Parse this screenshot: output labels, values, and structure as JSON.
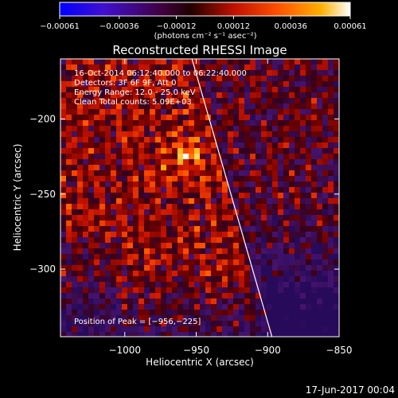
{
  "chart_data": {
    "type": "heatmap",
    "title": "Reconstructed RHESSI Image",
    "xlabel": "Heliocentric X (arcsec)",
    "ylabel": "Heliocentric Y (arcsec)",
    "xlim": [
      -1045,
      -850
    ],
    "ylim": [
      -345,
      -160
    ],
    "x_ticks": [
      {
        "value": -1000,
        "label": "−1000"
      },
      {
        "value": -950,
        "label": "−950"
      },
      {
        "value": -900,
        "label": "−900"
      },
      {
        "value": -850,
        "label": "−850"
      }
    ],
    "y_ticks": [
      {
        "value": -200,
        "label": "−200"
      },
      {
        "value": -250,
        "label": "−250"
      },
      {
        "value": -300,
        "label": "−300"
      }
    ],
    "colorbar": {
      "min": -0.00061,
      "max": 0.00061,
      "tick_values": [
        -0.00061,
        -0.00036,
        -0.00012,
        0.00012,
        0.00036,
        0.00061
      ],
      "tick_labels": [
        "−0.00061",
        "−0.00036",
        "−0.00012",
        "0.00012",
        "0.00036",
        "0.00061"
      ],
      "units_text": "(photons cm⁻² s⁻¹ asec⁻²)",
      "colors": [
        "#0000ff",
        "#6020a0",
        "#300010",
        "#a01000",
        "#ff3000",
        "#ff9000",
        "#ffffff"
      ]
    },
    "annotations": [
      "16-Oct-2014 06:12:40.000 to 06:22:40.000",
      "Detectors: 3F 6F 9F, Att 0",
      "Energy Range: 12.0 - 25.0 keV",
      "Clean     Total counts: 5.09E+03"
    ],
    "peak_label": "Position of Peak = [−956,−225]",
    "peak": {
      "x": -956,
      "y": -225
    },
    "limb_line": [
      {
        "x": -953,
        "y": -160
      },
      {
        "x": -897,
        "y": -345
      }
    ]
  },
  "footer": {
    "date": "17-Jun-2017 00:04"
  }
}
